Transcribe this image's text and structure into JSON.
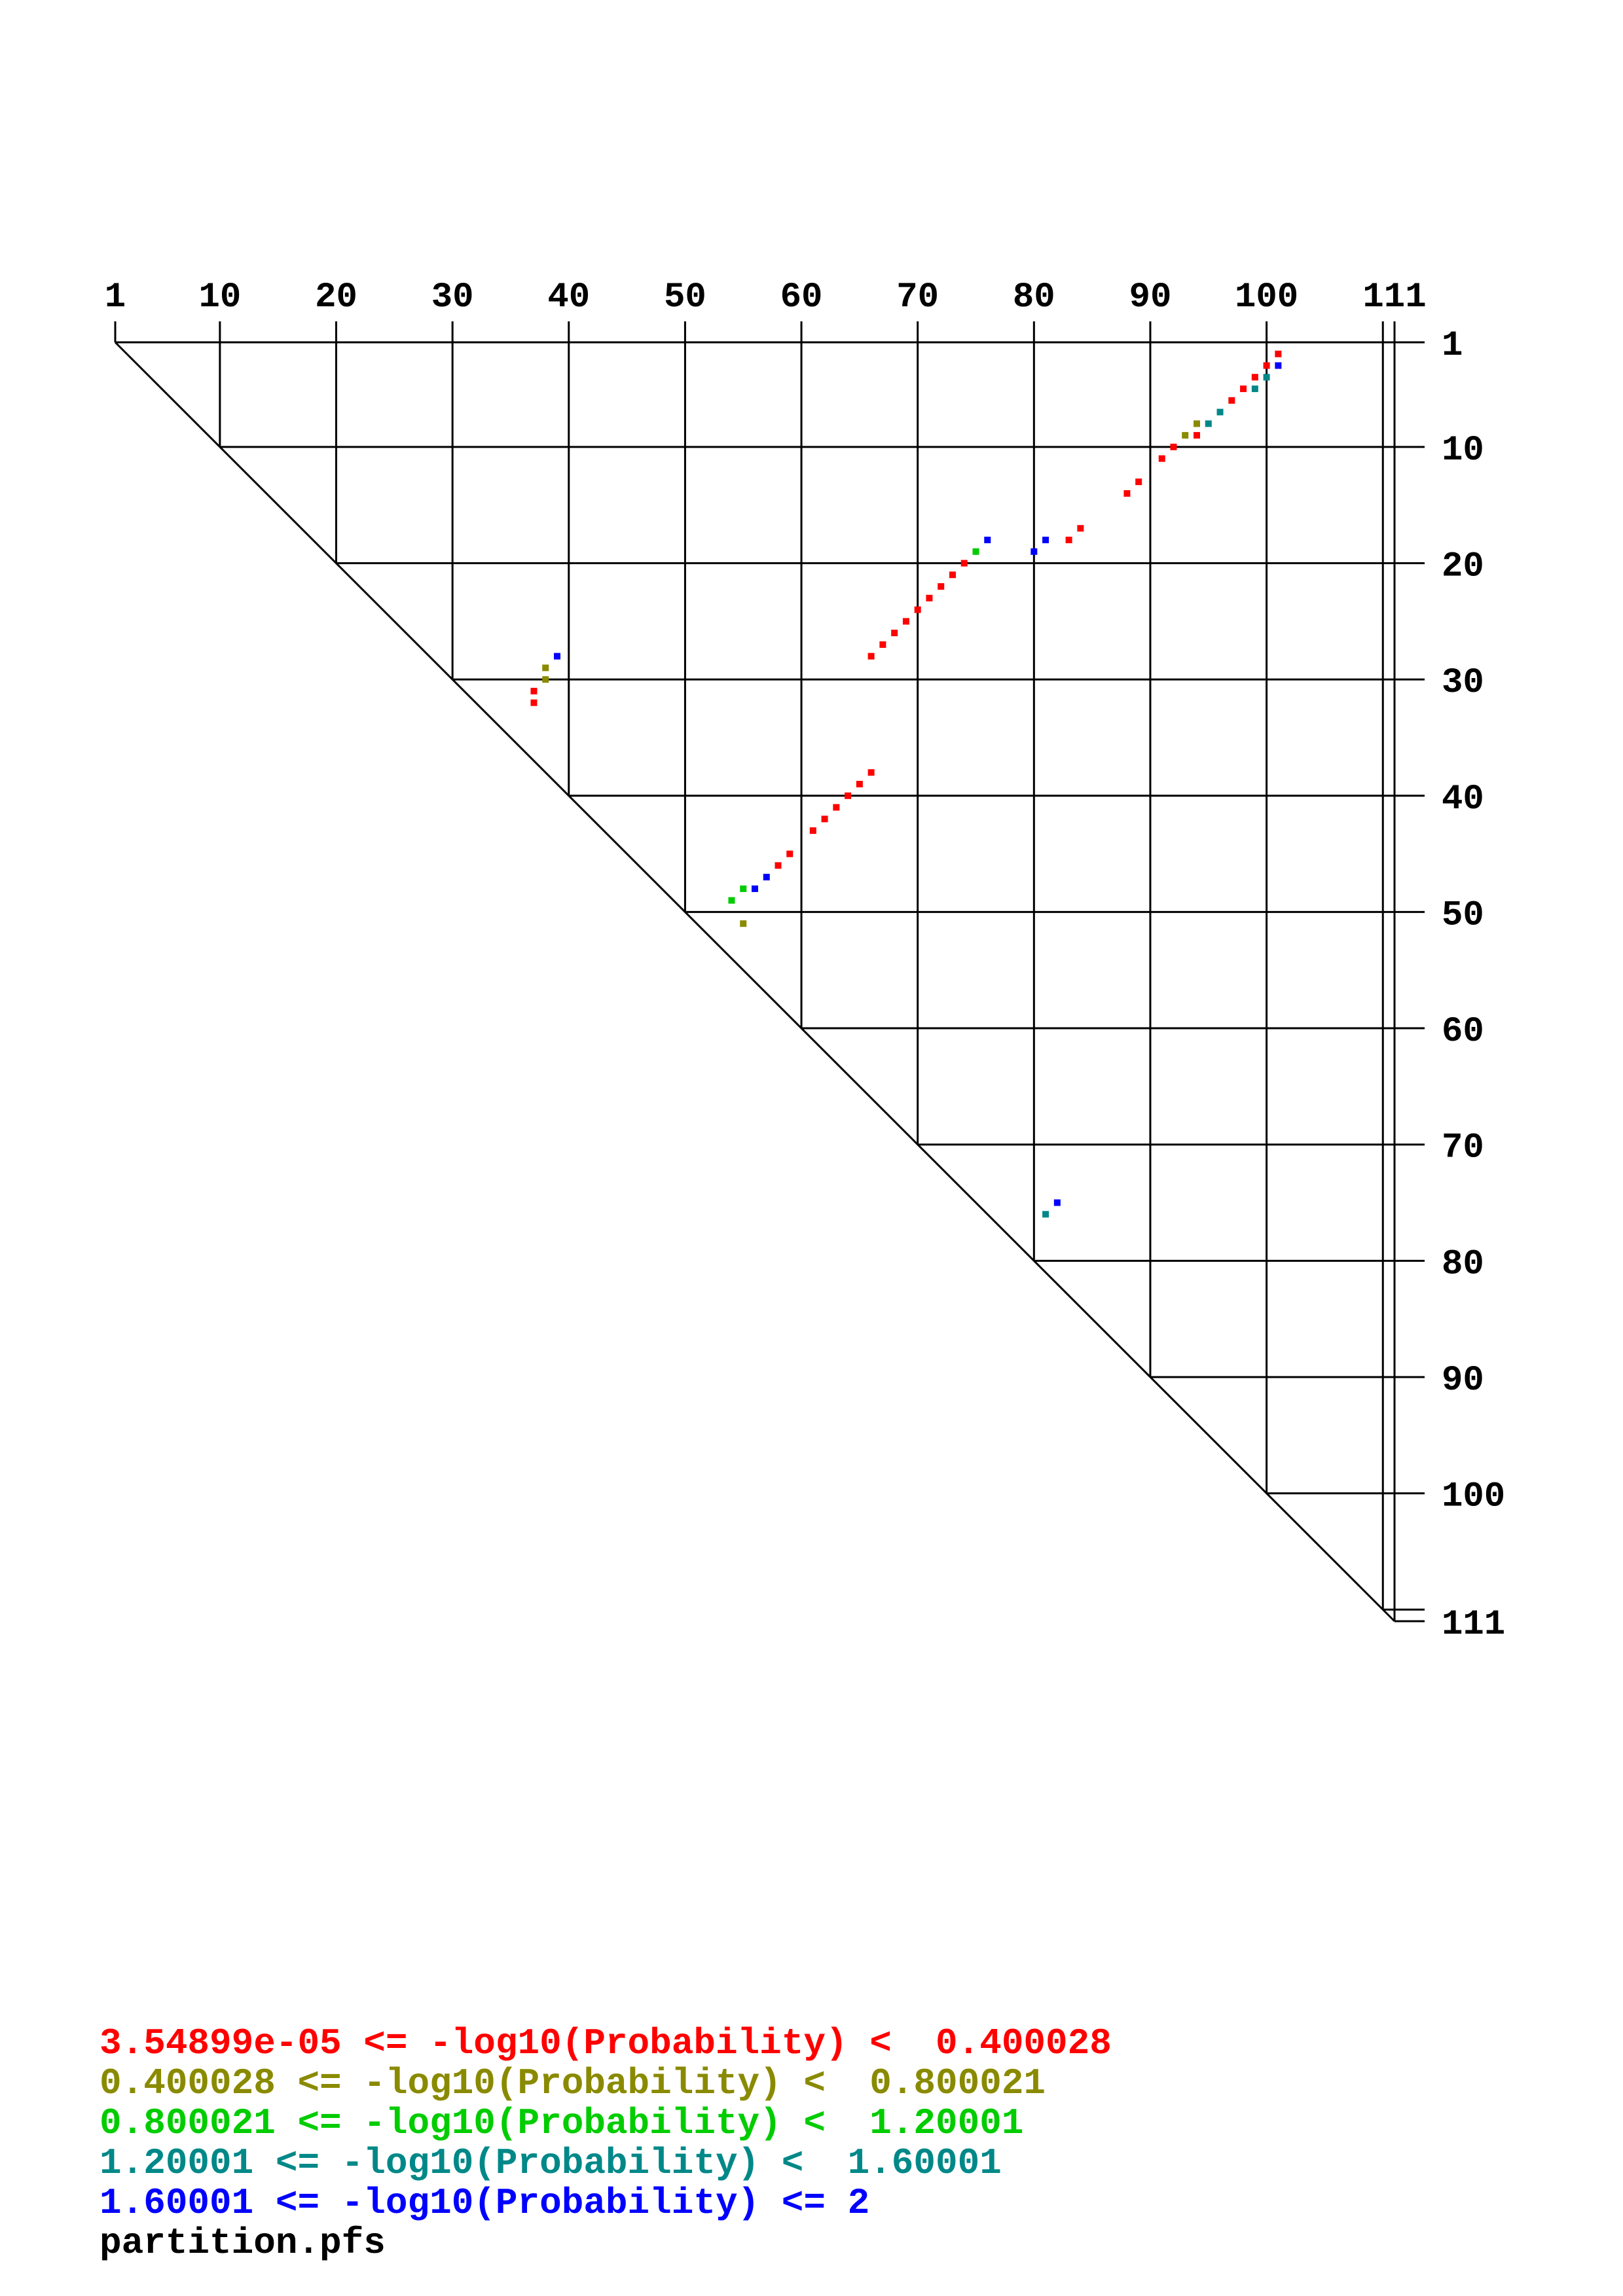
{
  "chart_data": {
    "type": "scatter",
    "subtype": "triangular-base-pair-probability-dot-plot",
    "title": "",
    "xlabel": "",
    "ylabel": "",
    "sequence_length": 111,
    "grid_interval": 10,
    "axis_ticks": [
      1,
      10,
      20,
      30,
      40,
      50,
      60,
      70,
      80,
      90,
      100,
      111
    ],
    "axis_tick_labels": [
      "1",
      "10",
      "20",
      "30",
      "40",
      "50",
      "60",
      "70",
      "80",
      "90",
      "100",
      "111"
    ],
    "grid_on": true,
    "classes": [
      {
        "label": "3.54899e-05 <= -log10(Probability) <  0.400028",
        "color": "#ff0000"
      },
      {
        "label": "0.400028 <= -log10(Probability) <  0.800021",
        "color": "#8a8a00"
      },
      {
        "label": "0.800021 <= -log10(Probability) <  1.20001",
        "color": "#00cc00"
      },
      {
        "label": "1.20001 <= -log10(Probability) <  1.60001",
        "color": "#008888"
      },
      {
        "label": "1.60001 <= -log10(Probability) <= 2",
        "color": "#0000ff"
      }
    ],
    "dots": [
      {
        "i": 2,
        "j": 101,
        "c": 0
      },
      {
        "i": 3,
        "j": 100,
        "c": 0
      },
      {
        "i": 4,
        "j": 99,
        "c": 0
      },
      {
        "i": 3,
        "j": 101,
        "c": 4
      },
      {
        "i": 4,
        "j": 100,
        "c": 3
      },
      {
        "i": 5,
        "j": 99,
        "c": 3
      },
      {
        "i": 5,
        "j": 98,
        "c": 0
      },
      {
        "i": 6,
        "j": 97,
        "c": 0
      },
      {
        "i": 7,
        "j": 96,
        "c": 3
      },
      {
        "i": 8,
        "j": 95,
        "c": 3
      },
      {
        "i": 8,
        "j": 94,
        "c": 1
      },
      {
        "i": 9,
        "j": 93,
        "c": 1
      },
      {
        "i": 9,
        "j": 94,
        "c": 0
      },
      {
        "i": 10,
        "j": 92,
        "c": 0
      },
      {
        "i": 11,
        "j": 91,
        "c": 0
      },
      {
        "i": 13,
        "j": 89,
        "c": 0
      },
      {
        "i": 14,
        "j": 88,
        "c": 0
      },
      {
        "i": 17,
        "j": 84,
        "c": 0
      },
      {
        "i": 18,
        "j": 83,
        "c": 0
      },
      {
        "i": 18,
        "j": 81,
        "c": 4
      },
      {
        "i": 19,
        "j": 80,
        "c": 4
      },
      {
        "i": 18,
        "j": 76,
        "c": 4
      },
      {
        "i": 19,
        "j": 75,
        "c": 2
      },
      {
        "i": 20,
        "j": 74,
        "c": 0
      },
      {
        "i": 21,
        "j": 73,
        "c": 0
      },
      {
        "i": 22,
        "j": 72,
        "c": 0
      },
      {
        "i": 23,
        "j": 71,
        "c": 0
      },
      {
        "i": 24,
        "j": 70,
        "c": 0
      },
      {
        "i": 25,
        "j": 69,
        "c": 0
      },
      {
        "i": 26,
        "j": 68,
        "c": 0
      },
      {
        "i": 27,
        "j": 67,
        "c": 0
      },
      {
        "i": 28,
        "j": 66,
        "c": 0
      },
      {
        "i": 28,
        "j": 39,
        "c": 4
      },
      {
        "i": 29,
        "j": 38,
        "c": 1
      },
      {
        "i": 30,
        "j": 38,
        "c": 1
      },
      {
        "i": 31,
        "j": 37,
        "c": 0
      },
      {
        "i": 32,
        "j": 37,
        "c": 0
      },
      {
        "i": 38,
        "j": 66,
        "c": 0
      },
      {
        "i": 39,
        "j": 65,
        "c": 0
      },
      {
        "i": 40,
        "j": 64,
        "c": 0
      },
      {
        "i": 41,
        "j": 63,
        "c": 0
      },
      {
        "i": 42,
        "j": 62,
        "c": 0
      },
      {
        "i": 43,
        "j": 61,
        "c": 0
      },
      {
        "i": 45,
        "j": 59,
        "c": 0
      },
      {
        "i": 46,
        "j": 58,
        "c": 0
      },
      {
        "i": 47,
        "j": 57,
        "c": 4
      },
      {
        "i": 48,
        "j": 56,
        "c": 4
      },
      {
        "i": 48,
        "j": 55,
        "c": 2
      },
      {
        "i": 49,
        "j": 54,
        "c": 2
      },
      {
        "i": 51,
        "j": 55,
        "c": 1
      },
      {
        "i": 75,
        "j": 82,
        "c": 4
      },
      {
        "i": 76,
        "j": 81,
        "c": 3
      }
    ]
  },
  "legend": {
    "filename": "partition.pfs"
  }
}
